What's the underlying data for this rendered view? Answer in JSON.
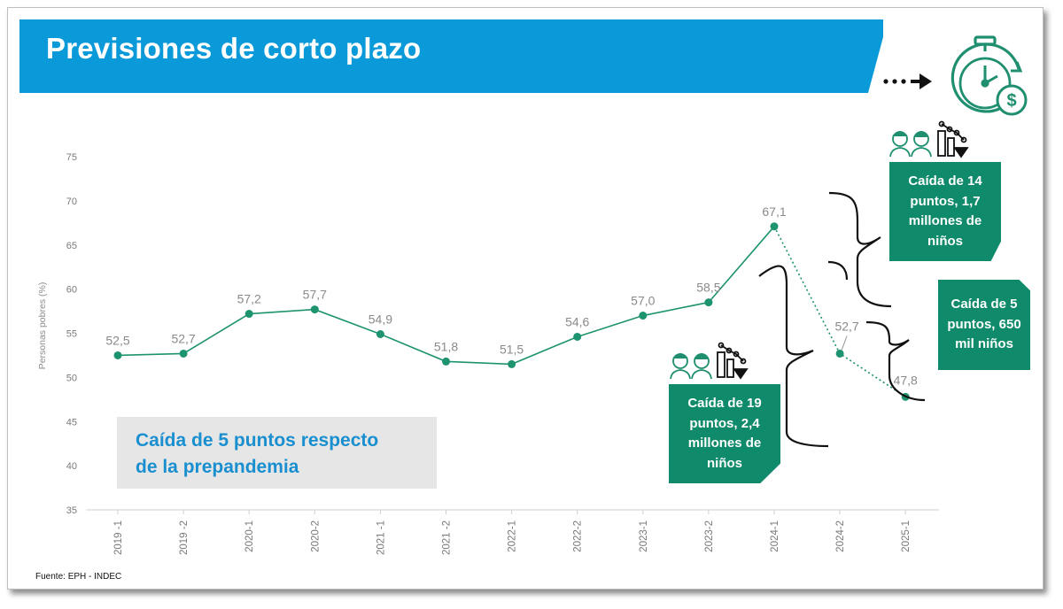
{
  "slide": {
    "title": "Previsiones de corto plazo",
    "source": "Fuente: EPH - INDEC",
    "callout_line1": "Caída de 5 puntos respecto",
    "callout_line2": "de la prepandemia"
  },
  "annotations": {
    "box1": "Caída de 14 puntos, 1,7 millones de niños",
    "box2": "Caída de 5 puntos, 650 mil niños",
    "box3": "Caída de 19 puntos, 2,4 millones de niños"
  },
  "icons": [
    "dotted-arrow-icon",
    "stopwatch-dollar-icon",
    "children-icon",
    "declining-chart-icon"
  ],
  "colors": {
    "banner": "#0a9ad9",
    "accent": "#0f8a6a",
    "line": "#1e9370",
    "callout_text": "#1a8fd0"
  },
  "chart_data": {
    "type": "line",
    "ylabel": "Personas pobres (%)",
    "xlabel": "",
    "ylim": [
      35,
      75
    ],
    "yticks": [
      35,
      40,
      45,
      50,
      55,
      60,
      65,
      70,
      75
    ],
    "categories": [
      "2019 -1",
      "2019 -2",
      "2020-1",
      "2020-2",
      "2021 -1",
      "2021 -2",
      "2022-1",
      "2022-2",
      "2023-1",
      "2023-2",
      "2024-1",
      "2024-2",
      "2025-1"
    ],
    "values": [
      52.5,
      52.7,
      57.2,
      57.7,
      54.9,
      51.8,
      51.5,
      54.6,
      57.0,
      58.5,
      67.1,
      52.7,
      47.8
    ],
    "labels": [
      "52,5",
      "52,7",
      "57,2",
      "57,7",
      "54,9",
      "51,8",
      "51,5",
      "54,6",
      "57,0",
      "58,5",
      "67,1",
      "52,7",
      "47,8"
    ],
    "projected_from_index": 11,
    "grid": false
  }
}
